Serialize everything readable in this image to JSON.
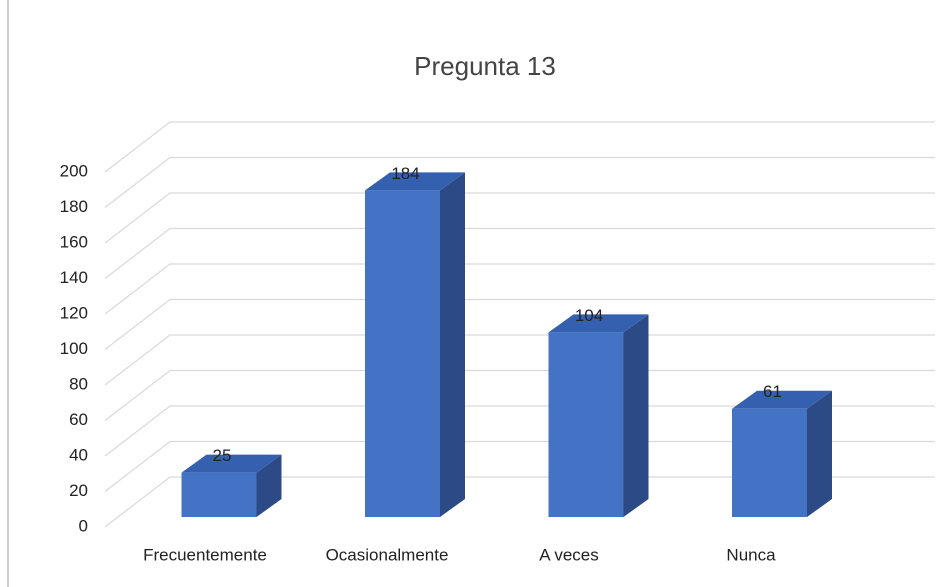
{
  "chart_data": {
    "type": "bar3d",
    "title": "Pregunta 13",
    "categories": [
      "Frecuentemente",
      "Ocasionalmente",
      "A veces",
      "Nunca"
    ],
    "values": [
      25,
      184,
      104,
      61
    ],
    "color": "#4472c4",
    "ylim": [
      0,
      200
    ],
    "yticks": [
      0,
      20,
      40,
      60,
      80,
      100,
      120,
      140,
      160,
      180,
      200
    ],
    "grid": true
  }
}
